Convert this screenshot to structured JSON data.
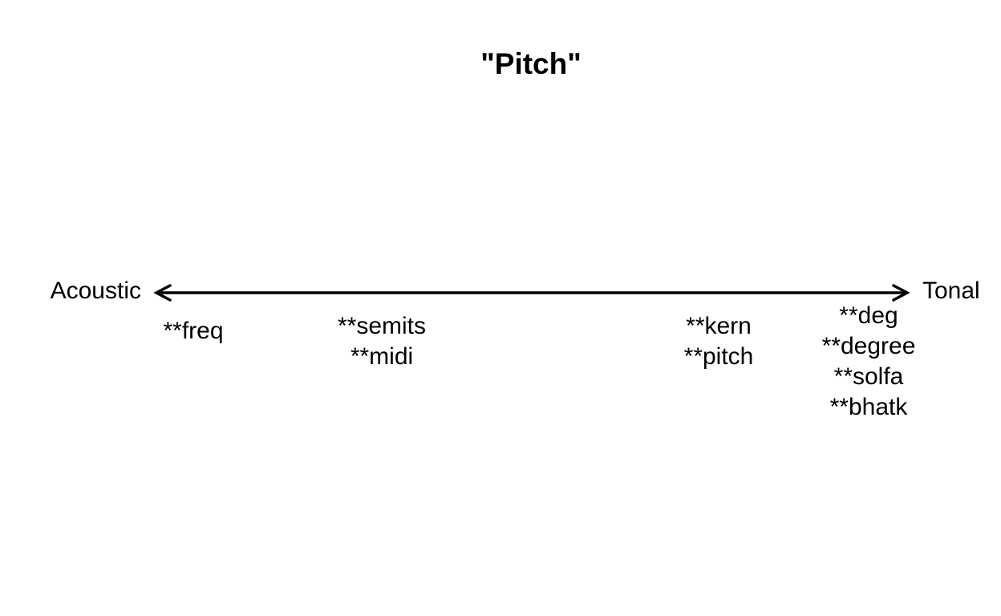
{
  "title": "\"Pitch\"",
  "axis": {
    "left_label": "Acoustic",
    "right_label": "Tonal"
  },
  "groups": [
    {
      "lines": [
        "**freq"
      ]
    },
    {
      "lines": [
        "**semits",
        "**midi"
      ]
    },
    {
      "lines": [
        "**kern",
        "**pitch"
      ]
    },
    {
      "lines": [
        "**deg",
        "**degree",
        "**solfa",
        "**bhatk"
      ]
    }
  ],
  "colors": {
    "ink": "#000000",
    "background": "#ffffff"
  }
}
